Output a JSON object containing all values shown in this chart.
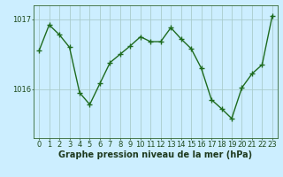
{
  "x": [
    0,
    1,
    2,
    3,
    4,
    5,
    6,
    7,
    8,
    9,
    10,
    11,
    12,
    13,
    14,
    15,
    16,
    17,
    18,
    19,
    20,
    21,
    22,
    23
  ],
  "y": [
    1016.55,
    1016.92,
    1016.78,
    1016.6,
    1015.95,
    1015.78,
    1016.08,
    1016.38,
    1016.5,
    1016.62,
    1016.75,
    1016.68,
    1016.68,
    1016.88,
    1016.72,
    1016.58,
    1016.3,
    1015.85,
    1015.72,
    1015.58,
    1016.02,
    1016.22,
    1016.35,
    1017.05
  ],
  "line_color": "#1e6b1e",
  "marker": "+",
  "markersize": 4,
  "markeredgewidth": 1.0,
  "linewidth": 1.0,
  "background_color": "#cceeff",
  "grid_color": "#aacccc",
  "yticks": [
    1016,
    1017
  ],
  "xlabel_label": "Graphe pression niveau de la mer (hPa)",
  "xlabel_fontsize": 7,
  "tick_fontsize": 6,
  "ylim": [
    1015.3,
    1017.2
  ],
  "xlim": [
    -0.5,
    23.5
  ],
  "spine_color": "#336633",
  "tick_color": "#1e4a1e",
  "xlabel_fontweight": "bold",
  "xlabel_color": "#1e3a1e"
}
